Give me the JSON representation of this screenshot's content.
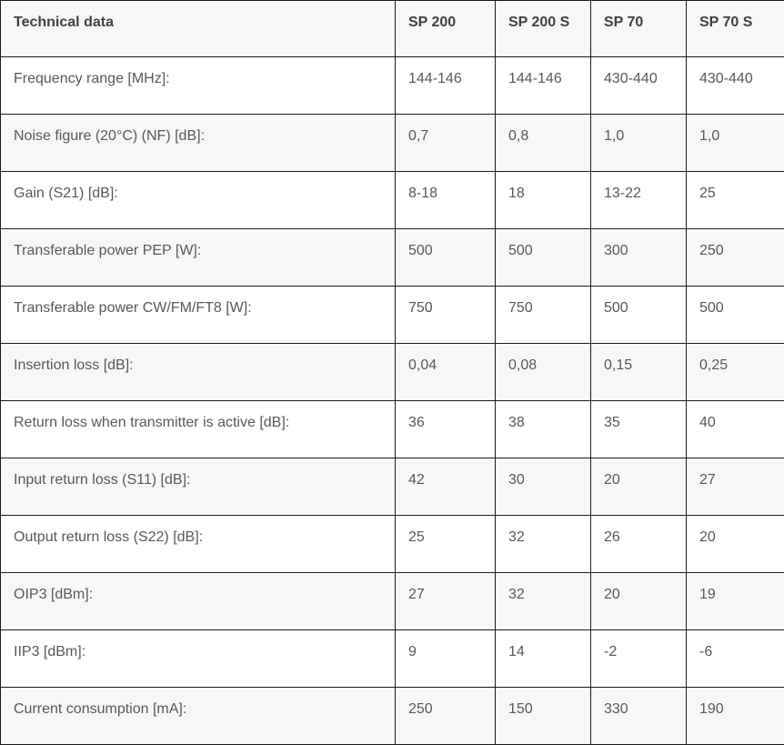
{
  "table": {
    "header": {
      "label_col": "Technical data",
      "product_cols": [
        "SP 200",
        "SP 200 S",
        "SP 70",
        "SP 70 S"
      ]
    },
    "rows": [
      {
        "label": "Frequency range [MHz]:",
        "values": [
          "144-146",
          "144-146",
          "430-440",
          "430-440"
        ]
      },
      {
        "label": "Noise figure (20°C) (NF) [dB]:",
        "values": [
          "0,7",
          "0,8",
          "1,0",
          "1,0"
        ]
      },
      {
        "label": "Gain (S21) [dB]:",
        "values": [
          "8-18",
          "18",
          "13-22",
          "25"
        ]
      },
      {
        "label": "Transferable power PEP [W]:",
        "values": [
          "500",
          "500",
          "300",
          "250"
        ]
      },
      {
        "label": "Transferable power CW/FM/FT8 [W]:",
        "values": [
          "750",
          "750",
          "500",
          "500"
        ]
      },
      {
        "label": "Insertion loss [dB]:",
        "values": [
          "0,04",
          "0,08",
          "0,15",
          "0,25"
        ]
      },
      {
        "label": "Return loss when transmitter is active [dB]:",
        "values": [
          "36",
          "38",
          "35",
          "40"
        ]
      },
      {
        "label": "Input return loss (S11) [dB]:",
        "values": [
          "42",
          "30",
          "20",
          "27"
        ]
      },
      {
        "label": "Output return loss (S22) [dB]:",
        "values": [
          "25",
          "32",
          "26",
          "20"
        ]
      },
      {
        "label": "OIP3 [dBm]:",
        "values": [
          "27",
          "32",
          "20",
          "19"
        ]
      },
      {
        "label": "IIP3 [dBm]:",
        "values": [
          "9",
          "14",
          "-2",
          "-6"
        ]
      },
      {
        "label": "Current consumption [mA]:",
        "values": [
          "250",
          "150",
          "330",
          "190"
        ]
      }
    ]
  },
  "colors": {
    "border": "#1c1c1c",
    "header_background": "#f7f7f7",
    "stripe_background": "#f7f7f7",
    "row_background": "#ffffff",
    "header_text": "#414143",
    "cell_text": "#58585a"
  }
}
